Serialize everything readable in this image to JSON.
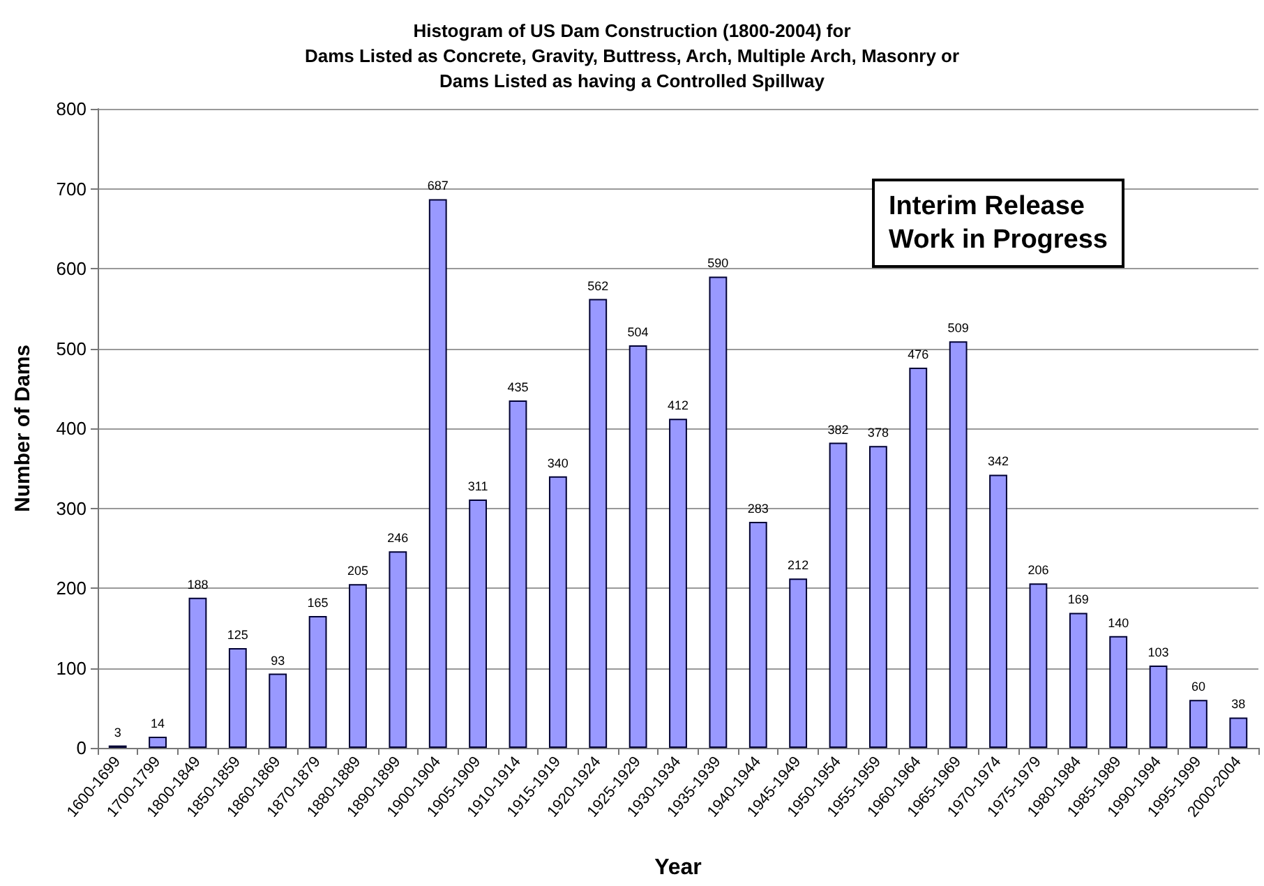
{
  "chart_data": {
    "type": "bar",
    "title": "Histogram of US Dam Construction (1800-2004) for\nDams Listed as Concrete, Gravity, Buttress, Arch, Multiple Arch, Masonry or\nDams Listed as having a Controlled Spillway",
    "xlabel": "Year",
    "ylabel": "Number of Dams",
    "categories": [
      "1600-1699",
      "1700-1799",
      "1800-1849",
      "1850-1859",
      "1860-1869",
      "1870-1879",
      "1880-1889",
      "1890-1899",
      "1900-1904",
      "1905-1909",
      "1910-1914",
      "1915-1919",
      "1920-1924",
      "1925-1929",
      "1930-1934",
      "1935-1939",
      "1940-1944",
      "1945-1949",
      "1950-1954",
      "1955-1959",
      "1960-1964",
      "1965-1969",
      "1970-1974",
      "1975-1979",
      "1980-1984",
      "1985-1989",
      "1990-1994",
      "1995-1999",
      "2000-2004"
    ],
    "values": [
      3,
      14,
      188,
      125,
      93,
      165,
      205,
      246,
      687,
      311,
      435,
      340,
      562,
      504,
      412,
      590,
      283,
      212,
      382,
      378,
      476,
      509,
      342,
      206,
      169,
      140,
      103,
      60,
      38
    ],
    "color": "#9999ff",
    "ylim": [
      0,
      800
    ],
    "yticks": [
      0,
      100,
      200,
      300,
      400,
      500,
      600,
      700,
      800
    ],
    "grid": "y",
    "data_labels": true,
    "annotations": [
      "Interim Release\nWork in Progress"
    ]
  }
}
